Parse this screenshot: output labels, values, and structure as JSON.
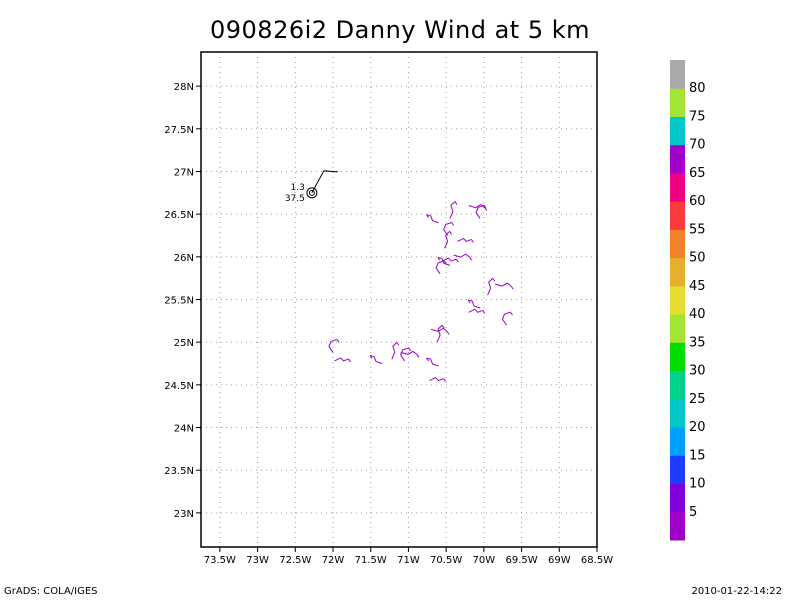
{
  "title": "090826i2 Danny Wind at 5 km",
  "footer": {
    "left": "GrADS: COLA/IGES",
    "right": "2010-01-22-14:22"
  },
  "map": {
    "lon_range": [
      -73.75,
      -68.5
    ],
    "lat_range": [
      22.6,
      28.4
    ],
    "lon_ticks": [
      {
        "value": -73.5,
        "label": "73.5W"
      },
      {
        "value": -73.0,
        "label": "73W"
      },
      {
        "value": -72.5,
        "label": "72.5W"
      },
      {
        "value": -72.0,
        "label": "72W"
      },
      {
        "value": -71.5,
        "label": "71.5W"
      },
      {
        "value": -71.0,
        "label": "71W"
      },
      {
        "value": -70.5,
        "label": "70.5W"
      },
      {
        "value": -70.0,
        "label": "70W"
      },
      {
        "value": -69.5,
        "label": "69.5W"
      },
      {
        "value": -69.0,
        "label": "69W"
      },
      {
        "value": -68.5,
        "label": "68.5W"
      }
    ],
    "lat_ticks": [
      {
        "value": 23.0,
        "label": "23N"
      },
      {
        "value": 23.5,
        "label": "23.5N"
      },
      {
        "value": 24.0,
        "label": "24N"
      },
      {
        "value": 24.5,
        "label": "24.5N"
      },
      {
        "value": 25.0,
        "label": "25N"
      },
      {
        "value": 25.5,
        "label": "25.5N"
      },
      {
        "value": 26.0,
        "label": "26N"
      },
      {
        "value": 26.5,
        "label": "26.5N"
      },
      {
        "value": 27.0,
        "label": "27N"
      },
      {
        "value": 27.5,
        "label": "27.5N"
      },
      {
        "value": 28.0,
        "label": "28N"
      }
    ],
    "grid": true,
    "storm_center": {
      "lon": -72.28,
      "lat": 26.75,
      "label_top": "1.3",
      "label_bottom": "37.5"
    },
    "barb_color": "#9a00c8",
    "wind_barbs": [
      {
        "lon": -72.0,
        "lat": 24.88
      },
      {
        "lon": -71.98,
        "lat": 24.78
      },
      {
        "lon": -71.35,
        "lat": 24.75
      },
      {
        "lon": -71.22,
        "lat": 24.8
      },
      {
        "lon": -71.1,
        "lat": 24.88
      },
      {
        "lon": -71.05,
        "lat": 24.78
      },
      {
        "lon": -70.72,
        "lat": 24.55
      },
      {
        "lon": -70.6,
        "lat": 24.72
      },
      {
        "lon": -70.62,
        "lat": 25.0
      },
      {
        "lon": -70.7,
        "lat": 25.15
      },
      {
        "lon": -70.58,
        "lat": 25.8
      },
      {
        "lon": -70.55,
        "lat": 25.95
      },
      {
        "lon": -70.45,
        "lat": 25.9
      },
      {
        "lon": -70.52,
        "lat": 26.1
      },
      {
        "lon": -70.4,
        "lat": 26.02
      },
      {
        "lon": -70.48,
        "lat": 26.25
      },
      {
        "lon": -70.35,
        "lat": 26.18
      },
      {
        "lon": -70.6,
        "lat": 26.4
      },
      {
        "lon": -70.45,
        "lat": 26.45
      },
      {
        "lon": -70.2,
        "lat": 26.6
      },
      {
        "lon": -70.05,
        "lat": 26.45
      },
      {
        "lon": -70.2,
        "lat": 25.35
      },
      {
        "lon": -70.05,
        "lat": 25.4
      },
      {
        "lon": -69.95,
        "lat": 25.55
      },
      {
        "lon": -69.85,
        "lat": 25.68
      },
      {
        "lon": -69.7,
        "lat": 25.2
      }
    ]
  },
  "colorbar": {
    "segments": [
      {
        "color": "#a000c8"
      },
      {
        "color": "#8200dc"
      },
      {
        "color": "#1e3cff"
      },
      {
        "color": "#00a0ff"
      },
      {
        "color": "#00c8c8"
      },
      {
        "color": "#00d28c"
      },
      {
        "color": "#00dc00"
      },
      {
        "color": "#a0e632"
      },
      {
        "color": "#e6dc32"
      },
      {
        "color": "#e6af2d"
      },
      {
        "color": "#f08228"
      },
      {
        "color": "#fa3c3c"
      },
      {
        "color": "#f00082"
      },
      {
        "color": "#a000c8"
      },
      {
        "color": "#00c8c8"
      },
      {
        "color": "#a0e632"
      },
      {
        "color": "#aaaaaa"
      }
    ],
    "labels": [
      "5",
      "10",
      "15",
      "20",
      "25",
      "30",
      "35",
      "40",
      "45",
      "50",
      "55",
      "60",
      "65",
      "70",
      "75",
      "80"
    ]
  }
}
